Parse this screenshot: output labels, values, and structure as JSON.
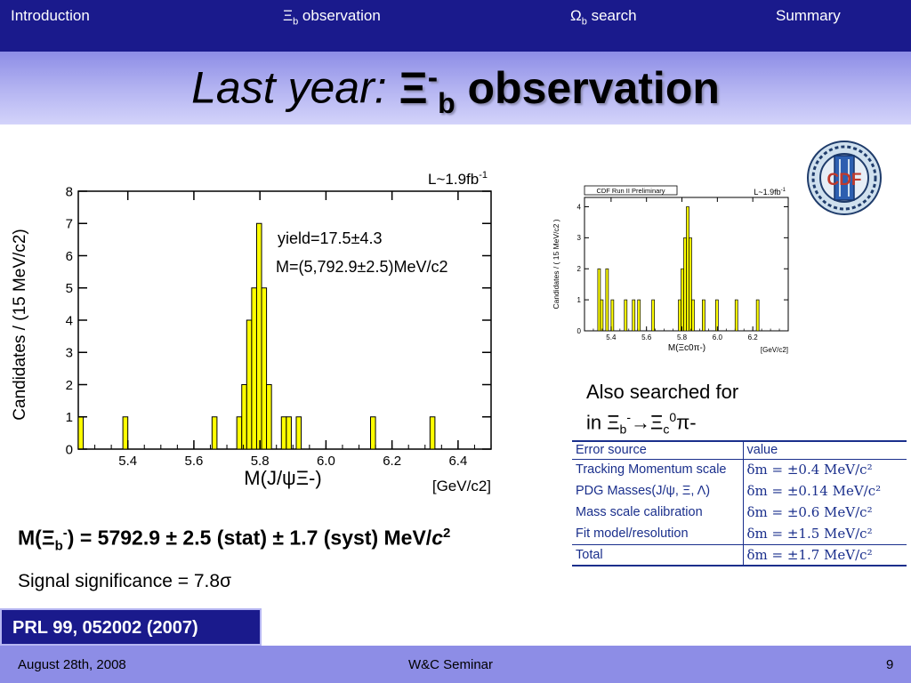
{
  "nav": {
    "items": [
      "Introduction",
      "Ξb observation",
      "Ωb search",
      "Summary"
    ],
    "item1_sym": "Ξ",
    "item1_sub": "b",
    "item1_rest": " observation",
    "item2_sym": "Ω",
    "item2_sub": "b",
    "item2_rest": " search"
  },
  "title": {
    "part1": "Last year: ",
    "sym": "Ξ",
    "sup": "-",
    "sub": "b",
    "part2": " observation"
  },
  "colors": {
    "nav_bg": "#1a1a8c",
    "band": "#b6b6f2",
    "histogram_fill": "#ffff00",
    "table_text": "#1a2f8c"
  },
  "chart_data": [
    {
      "type": "bar",
      "title": "",
      "lumi": "L~1.9fb",
      "lumi_sup": "-1",
      "xlabel": "M(J/ψΞ-)",
      "xunit": "[GeV/c2]",
      "ylabel": "Candidates / (15 MeV/c2)",
      "xlim": [
        5.25,
        6.5
      ],
      "ylim": [
        0,
        8
      ],
      "xticks": [
        "5.4",
        "5.6",
        "5.8",
        "6.0",
        "6.2",
        "6.4"
      ],
      "yticks": [
        "0",
        "1",
        "2",
        "3",
        "4",
        "5",
        "6",
        "7",
        "8"
      ],
      "bin_width": 0.015,
      "bins": [
        {
          "x": 5.25,
          "count": 1
        },
        {
          "x": 5.385,
          "count": 1
        },
        {
          "x": 5.655,
          "count": 1
        },
        {
          "x": 5.73,
          "count": 1
        },
        {
          "x": 5.745,
          "count": 2
        },
        {
          "x": 5.76,
          "count": 4
        },
        {
          "x": 5.775,
          "count": 5
        },
        {
          "x": 5.79,
          "count": 7
        },
        {
          "x": 5.805,
          "count": 5
        },
        {
          "x": 5.82,
          "count": 2
        },
        {
          "x": 5.865,
          "count": 1
        },
        {
          "x": 5.88,
          "count": 1
        },
        {
          "x": 5.91,
          "count": 1
        },
        {
          "x": 6.135,
          "count": 1
        },
        {
          "x": 6.315,
          "count": 1
        }
      ],
      "annotations": {
        "yield": "yield=17.5±4.3",
        "mass": "M=(5,792.9±2.5)MeV/c2"
      }
    },
    {
      "type": "bar",
      "title": "",
      "label": "CDF Run II Preliminary",
      "lumi": "L~1.9fb",
      "lumi_sup": "-1",
      "xlabel": "M(Ξc0π-)",
      "xunit": "[GeV/c2]",
      "ylabel": "Candidates / ( 15 MeV/c2 )",
      "xlim": [
        5.25,
        6.4
      ],
      "ylim": [
        0,
        4.3
      ],
      "xticks": [
        "5.4",
        "5.6",
        "5.8",
        "6.0",
        "6.2"
      ],
      "yticks": [
        "0",
        "1",
        "2",
        "3",
        "4"
      ],
      "bin_width": 0.015,
      "bins": [
        {
          "x": 5.325,
          "count": 2
        },
        {
          "x": 5.34,
          "count": 1
        },
        {
          "x": 5.37,
          "count": 2
        },
        {
          "x": 5.4,
          "count": 1
        },
        {
          "x": 5.475,
          "count": 1
        },
        {
          "x": 5.52,
          "count": 1
        },
        {
          "x": 5.55,
          "count": 1
        },
        {
          "x": 5.63,
          "count": 1
        },
        {
          "x": 5.78,
          "count": 1
        },
        {
          "x": 5.795,
          "count": 2
        },
        {
          "x": 5.81,
          "count": 3
        },
        {
          "x": 5.825,
          "count": 4
        },
        {
          "x": 5.84,
          "count": 3
        },
        {
          "x": 5.855,
          "count": 1
        },
        {
          "x": 5.915,
          "count": 1
        },
        {
          "x": 5.99,
          "count": 1
        },
        {
          "x": 6.1,
          "count": 1
        },
        {
          "x": 6.22,
          "count": 1
        }
      ]
    }
  ],
  "also_searched": {
    "line1": "Also searched for",
    "line2_pre": "in Ξ",
    "line2_sub1": "b",
    "line2_sup1": "-",
    "line2_arrow": "→",
    "line2_sym2": "Ξ",
    "line2_sub2": "c",
    "line2_sup2": "0",
    "line2_post": "π-"
  },
  "error_table": {
    "header": [
      "Error source",
      "value"
    ],
    "rows": [
      {
        "source": "Tracking Momentum scale",
        "value": "δm = ±0.4 MeV/c²"
      },
      {
        "source": "PDG Masses(J/ψ, Ξ, Λ)",
        "value": "δm = ±0.14 MeV/c²"
      },
      {
        "source": "Mass scale calibration",
        "value": "δm = ±0.6 MeV/c²"
      },
      {
        "source": "Fit model/resolution",
        "value": "δm = ±1.5 MeV/c²"
      },
      {
        "source": "Total",
        "value": "δm = ±1.7 MeV/c²"
      }
    ]
  },
  "result": {
    "pre": "M(Ξ",
    "sub": "b",
    "sup": "-",
    "post": ") = 5792.9 ± 2.5 (stat) ± 1.7 (syst) MeV/",
    "c": "c",
    "csup": "2"
  },
  "significance": "Signal significance = 7.8σ",
  "reference": "PRL 99, 052002 (2007)",
  "footer": {
    "date": "August 28th, 2008",
    "event": "W&C Seminar",
    "page": "9"
  },
  "logo": {
    "icon": "cdf-logo-icon",
    "text": "CDF"
  }
}
